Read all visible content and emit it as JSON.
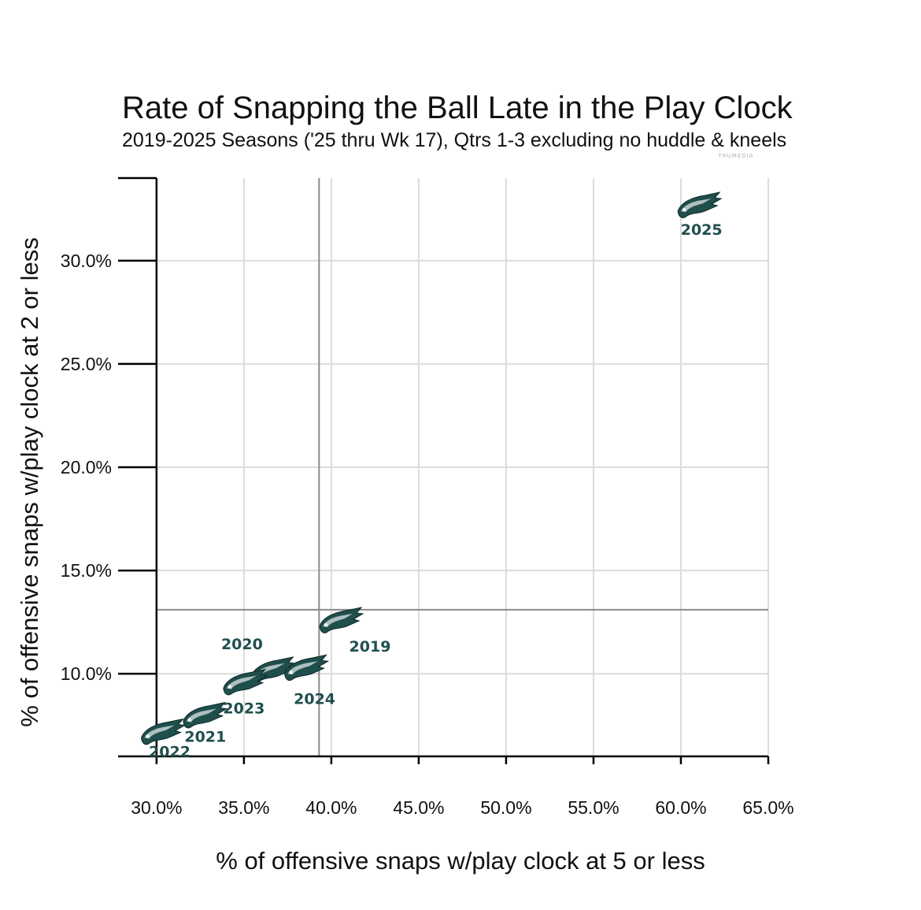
{
  "watermark": "TRUMEDIA",
  "chart_data": {
    "type": "scatter",
    "title": "Rate of Snapping the Ball Late in the Play Clock",
    "subtitle": "2019-2025 Seasons ('25 thru Wk 17), Qtrs 1-3 excluding no huddle & kneels",
    "xlabel": "% of offensive snaps w/play clock at 5 or less",
    "ylabel": "% of offensive snaps w/play clock at 2 or less",
    "xlim": [
      27.8,
      65.0
    ],
    "ylim": [
      6.0,
      34.0
    ],
    "xticks": [
      30,
      35,
      40,
      45,
      50,
      55,
      60,
      65
    ],
    "xtick_labels": [
      "30.0%",
      "35.0%",
      "40.0%",
      "45.0%",
      "50.0%",
      "55.0%",
      "60.0%",
      "65.0%"
    ],
    "yticks": [
      10,
      15,
      20,
      25,
      30
    ],
    "ytick_labels": [
      "10.0%",
      "15.0%",
      "20.0%",
      "25.0%",
      "30.0%"
    ],
    "grid": true,
    "reference_lines": {
      "x": 39.3,
      "y": 13.1
    },
    "marker": "eagle-logo",
    "marker_color": "#1f4f4d",
    "points": [
      {
        "label": "2019",
        "x": 40.5,
        "y": 12.6
      },
      {
        "label": "2020",
        "x": 36.6,
        "y": 10.2
      },
      {
        "label": "2021",
        "x": 32.7,
        "y": 8.0
      },
      {
        "label": "2022",
        "x": 30.3,
        "y": 7.2
      },
      {
        "label": "2023",
        "x": 35.0,
        "y": 9.6
      },
      {
        "label": "2024",
        "x": 38.5,
        "y": 10.3
      },
      {
        "label": "2025",
        "x": 61.0,
        "y": 32.7
      }
    ]
  }
}
